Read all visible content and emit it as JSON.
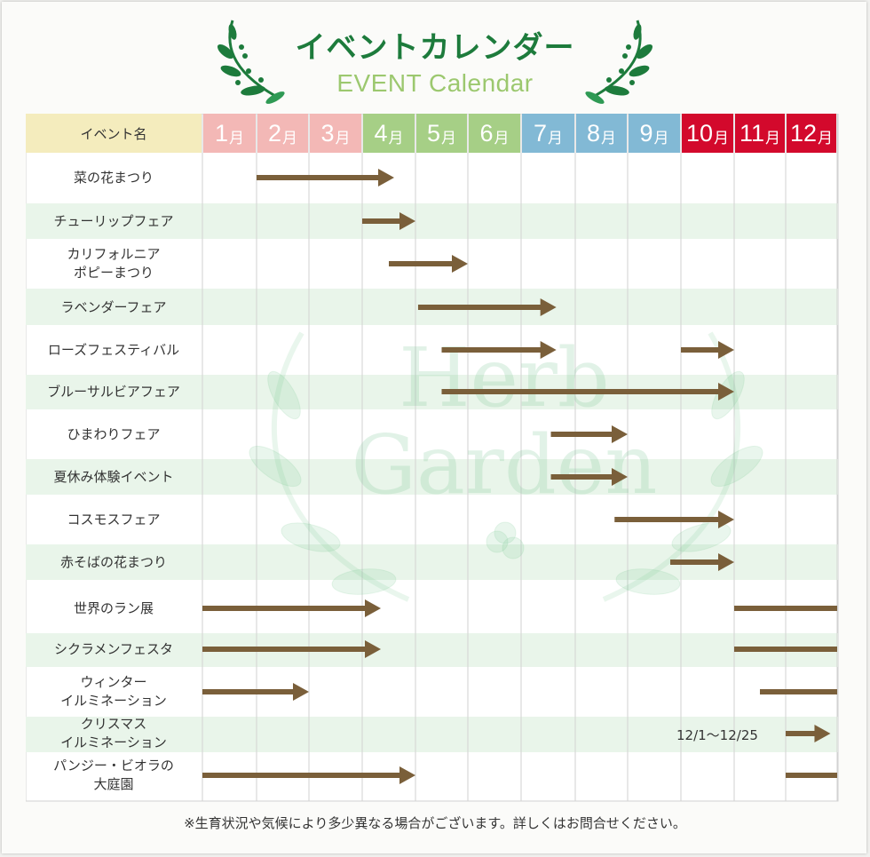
{
  "header": {
    "title": "イベントカレンダー",
    "subtitle": "EVENT Calendar",
    "column_header": "イベント名"
  },
  "watermark": {
    "line1": "Herb",
    "line2": "Garden"
  },
  "months": [
    {
      "num": "1",
      "unit": "月",
      "color": "#f3b8b6"
    },
    {
      "num": "2",
      "unit": "月",
      "color": "#f3b8b6"
    },
    {
      "num": "3",
      "unit": "月",
      "color": "#f3b8b6"
    },
    {
      "num": "4",
      "unit": "月",
      "color": "#a6cf86"
    },
    {
      "num": "5",
      "unit": "月",
      "color": "#a6cf86"
    },
    {
      "num": "6",
      "unit": "月",
      "color": "#a6cf86"
    },
    {
      "num": "7",
      "unit": "月",
      "color": "#82b9d5"
    },
    {
      "num": "8",
      "unit": "月",
      "color": "#82b9d5"
    },
    {
      "num": "9",
      "unit": "月",
      "color": "#82b9d5"
    },
    {
      "num": "10",
      "unit": "月",
      "color": "#d3092c"
    },
    {
      "num": "11",
      "unit": "月",
      "color": "#d3092c"
    },
    {
      "num": "12",
      "unit": "月",
      "color": "#d3092c"
    }
  ],
  "events": [
    {
      "lines": [
        "菜の花まつり"
      ],
      "bars": [
        {
          "start": 2.0,
          "end": 4.6,
          "arrow": true
        }
      ]
    },
    {
      "lines": [
        "チューリップフェア"
      ],
      "bars": [
        {
          "start": 4.0,
          "end": 5.0,
          "arrow": true
        }
      ]
    },
    {
      "lines": [
        "カリフォルニア",
        "ポピーまつり"
      ],
      "bars": [
        {
          "start": 4.5,
          "end": 6.0,
          "arrow": true
        }
      ]
    },
    {
      "lines": [
        "ラベンダーフェア"
      ],
      "bars": [
        {
          "start": 5.05,
          "end": 7.65,
          "arrow": true
        }
      ]
    },
    {
      "lines": [
        "ローズフェスティバル"
      ],
      "bars": [
        {
          "start": 5.5,
          "end": 7.65,
          "arrow": true
        },
        {
          "start": 10.0,
          "end": 11.0,
          "arrow": true
        }
      ]
    },
    {
      "lines": [
        "ブルーサルビアフェア"
      ],
      "bars": [
        {
          "start": 5.5,
          "end": 11.0,
          "arrow": true
        }
      ]
    },
    {
      "lines": [
        "ひまわりフェア"
      ],
      "bars": [
        {
          "start": 7.55,
          "end": 9.0,
          "arrow": true
        }
      ]
    },
    {
      "lines": [
        "夏休み体験イベント"
      ],
      "bars": [
        {
          "start": 7.55,
          "end": 9.0,
          "arrow": true
        }
      ]
    },
    {
      "lines": [
        "コスモスフェア"
      ],
      "bars": [
        {
          "start": 8.75,
          "end": 11.0,
          "arrow": true
        }
      ]
    },
    {
      "lines": [
        "赤そばの花まつり"
      ],
      "bars": [
        {
          "start": 9.8,
          "end": 11.0,
          "arrow": true
        }
      ]
    },
    {
      "lines": [
        "世界のラン展"
      ],
      "bars": [
        {
          "start": 1.0,
          "end": 4.35,
          "arrow": true
        },
        {
          "start": 11.0,
          "end": 13.0,
          "arrow": false
        }
      ]
    },
    {
      "lines": [
        "シクラメンフェスタ"
      ],
      "bars": [
        {
          "start": 1.0,
          "end": 4.35,
          "arrow": true
        },
        {
          "start": 11.0,
          "end": 13.0,
          "arrow": false
        }
      ]
    },
    {
      "lines": [
        "ウィンター",
        "イルミネーション"
      ],
      "bars": [
        {
          "start": 1.0,
          "end": 3.0,
          "arrow": true
        },
        {
          "start": 11.5,
          "end": 13.0,
          "arrow": false
        }
      ]
    },
    {
      "lines": [
        "クリスマス",
        "イルミネーション"
      ],
      "bars": [
        {
          "start": 12.0,
          "end": 12.87,
          "arrow": true
        }
      ],
      "date_note": "12/1〜12/25"
    },
    {
      "lines": [
        "パンジー・ビオラの",
        "大庭園"
      ],
      "bars": [
        {
          "start": 1.0,
          "end": 5.0,
          "arrow": true
        },
        {
          "start": 12.0,
          "end": 13.0,
          "arrow": false
        }
      ]
    }
  ],
  "footnote": "※生育状況や気候により多少異なる場合がございます。詳しくはお問合せください。",
  "colors": {
    "title_green": "#1d7b3c",
    "subtitle_green": "#9cc86f",
    "bar_brown": "#7a5f3a",
    "row_stripe": "#e9f5ea",
    "grid_line": "#d2d2d2"
  }
}
